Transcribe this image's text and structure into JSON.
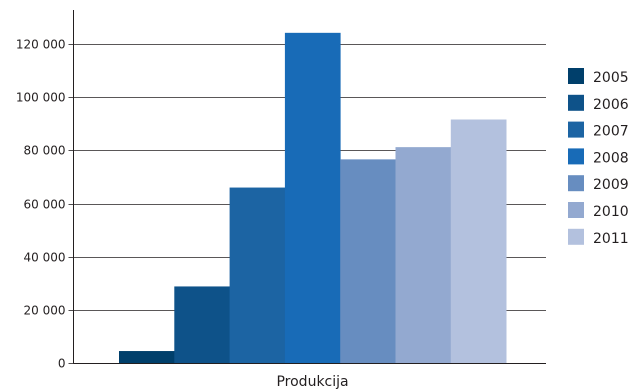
{
  "chart_data": {
    "type": "bar",
    "categories": [
      "Produkcija"
    ],
    "series": [
      {
        "name": "2005",
        "values": [
          4500
        ],
        "color": "#003f6b"
      },
      {
        "name": "2006",
        "values": [
          28800
        ],
        "color": "#0e5289"
      },
      {
        "name": "2007",
        "values": [
          66000
        ],
        "color": "#1c64a3"
      },
      {
        "name": "2008",
        "values": [
          124200
        ],
        "color": "#186bb7"
      },
      {
        "name": "2009",
        "values": [
          76600
        ],
        "color": "#678dc0"
      },
      {
        "name": "2010",
        "values": [
          81200
        ],
        "color": "#93a9d0"
      },
      {
        "name": "2011",
        "values": [
          91600
        ],
        "color": "#b3c1de"
      }
    ],
    "ylim": [
      0,
      130000
    ],
    "yticks": [
      0,
      20000,
      40000,
      60000,
      80000,
      100000,
      120000
    ],
    "ytick_labels": [
      "0",
      "20 000",
      "40 000",
      "60 000",
      "80 000",
      "100 000",
      "120 000"
    ],
    "grid": true,
    "legend_position": "right"
  }
}
